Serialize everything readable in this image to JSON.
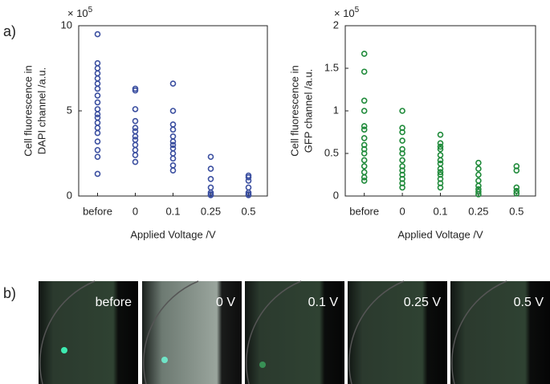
{
  "panel_labels": [
    "a)",
    "b)"
  ],
  "chart_data": [
    {
      "type": "scatter",
      "y_label_lines": [
        "Cell fluorescence in",
        "DAPI channel /a.u."
      ],
      "x_label": "Applied Voltage /V",
      "multiplier": {
        "base": "× 10",
        "exponent": "5"
      },
      "categories": [
        "before",
        "0",
        "0.1",
        "0.25",
        "0.5"
      ],
      "color": "#3b4fa0",
      "values": [
        [
          9.5,
          7.8,
          7.5,
          7.2,
          6.9,
          6.6,
          6.3,
          5.9,
          5.5,
          5.1,
          4.8,
          4.6,
          4.3,
          4.0,
          3.7,
          3.2,
          2.7,
          2.3,
          1.3
        ],
        [
          6.3,
          6.2,
          5.1,
          4.4,
          4.0,
          3.8,
          3.5,
          3.3,
          3.0,
          2.7,
          2.4,
          2.0
        ],
        [
          6.6,
          5.0,
          4.2,
          3.9,
          3.5,
          3.2,
          3.0,
          2.8,
          2.5,
          2.2,
          1.8,
          1.5
        ],
        [
          2.3,
          1.6,
          1.0,
          0.5,
          0.2,
          0.1,
          0.05
        ],
        [
          1.2,
          1.1,
          0.9,
          0.5,
          0.2,
          0.1,
          0.05
        ]
      ],
      "ylim": [
        0,
        10
      ],
      "yticks": [
        0,
        5,
        10
      ]
    },
    {
      "type": "scatter",
      "y_label_lines": [
        "Cell fluorescence in",
        "GFP channel /a.u."
      ],
      "x_label": "Applied Voltage /V",
      "multiplier": {
        "base": "× 10",
        "exponent": "5"
      },
      "categories": [
        "before",
        "0",
        "0.1",
        "0.25",
        "0.5"
      ],
      "color": "#1f8a3a",
      "values": [
        [
          1.67,
          1.46,
          1.12,
          1.0,
          0.82,
          0.78,
          0.68,
          0.6,
          0.55,
          0.5,
          0.42,
          0.35,
          0.28,
          0.22,
          0.18
        ],
        [
          1.0,
          0.8,
          0.75,
          0.65,
          0.55,
          0.5,
          0.42,
          0.35,
          0.3,
          0.25,
          0.2,
          0.15,
          0.1
        ],
        [
          0.72,
          0.62,
          0.58,
          0.55,
          0.48,
          0.42,
          0.38,
          0.32,
          0.28,
          0.25,
          0.2,
          0.15,
          0.1
        ],
        [
          0.39,
          0.32,
          0.25,
          0.18,
          0.12,
          0.08,
          0.05,
          0.02
        ],
        [
          0.35,
          0.3,
          0.1,
          0.06,
          0.03
        ]
      ],
      "ylim": [
        0,
        2
      ],
      "yticks": [
        0,
        0.5,
        1,
        1.5,
        2
      ]
    }
  ],
  "image_labels": [
    "before",
    "0 V",
    "0.1 V",
    "0.25 V",
    "0.5 V"
  ]
}
